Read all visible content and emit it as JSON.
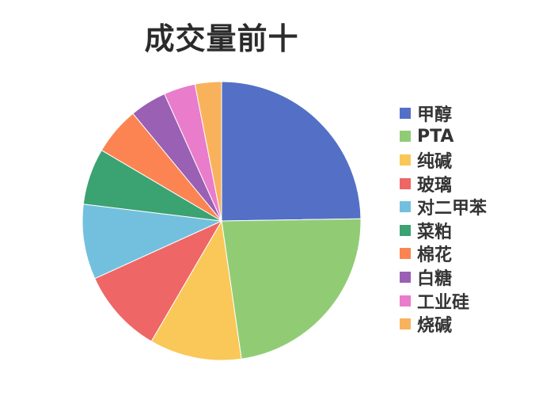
{
  "chart_data": {
    "type": "pie",
    "title": "成交量前十",
    "legend_position": "right",
    "start_angle": "top",
    "direction": "clockwise",
    "slices": [
      {
        "label": "甲醇",
        "value": 25.0,
        "color": "#5470c6"
      },
      {
        "label": "PTA",
        "value": 23.2,
        "color": "#91cc75"
      },
      {
        "label": "纯碱",
        "value": 10.8,
        "color": "#fac858"
      },
      {
        "label": "玻璃",
        "value": 9.9,
        "color": "#ee6666"
      },
      {
        "label": "对二甲苯",
        "value": 8.8,
        "color": "#73c0de"
      },
      {
        "label": "菜粕",
        "value": 6.6,
        "color": "#3ba272"
      },
      {
        "label": "棉花",
        "value": 5.6,
        "color": "#fc8452"
      },
      {
        "label": "白糖",
        "value": 4.3,
        "color": "#9a60b4"
      },
      {
        "label": "工业硅",
        "value": 3.7,
        "color": "#ea7ccc"
      },
      {
        "label": "烧碱",
        "value": 3.1,
        "color": "#f9b25c"
      }
    ]
  }
}
